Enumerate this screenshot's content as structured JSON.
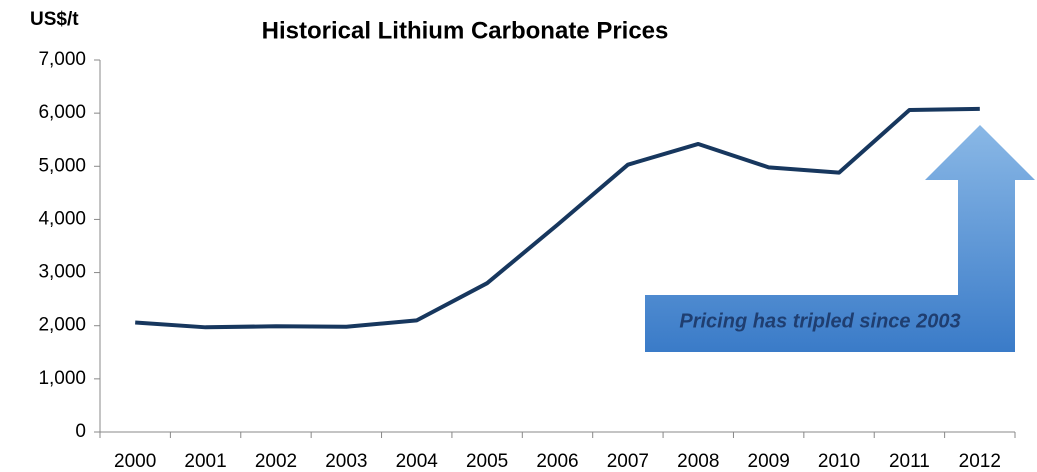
{
  "chart_data": {
    "type": "line",
    "title": "Historical Lithium Carbonate Prices",
    "y_label": "US$/t",
    "annotation": "Pricing has tripled since 2003",
    "categories": [
      "2000",
      "2001",
      "2002",
      "2003",
      "2004",
      "2005",
      "2006",
      "2007",
      "2008",
      "2009",
      "2010",
      "2011",
      "2012"
    ],
    "values": [
      2060,
      1970,
      1990,
      1980,
      2100,
      2800,
      3900,
      5030,
      5420,
      4980,
      4880,
      6060,
      6080
    ],
    "color": "#17375e",
    "ylim": [
      0,
      7000
    ],
    "yticks": [
      0,
      {
        "value": 1000,
        "label": "1,000"
      },
      {
        "value": 2000,
        "label": "2,000"
      },
      {
        "value": 3000,
        "label": "3,000"
      },
      {
        "value": 4000,
        "label": "4,000"
      },
      {
        "value": 5000,
        "label": "5,000"
      },
      {
        "value": 6000,
        "label": "6,000"
      },
      {
        "value": 7000,
        "label": "7,000"
      }
    ],
    "grid": false
  }
}
